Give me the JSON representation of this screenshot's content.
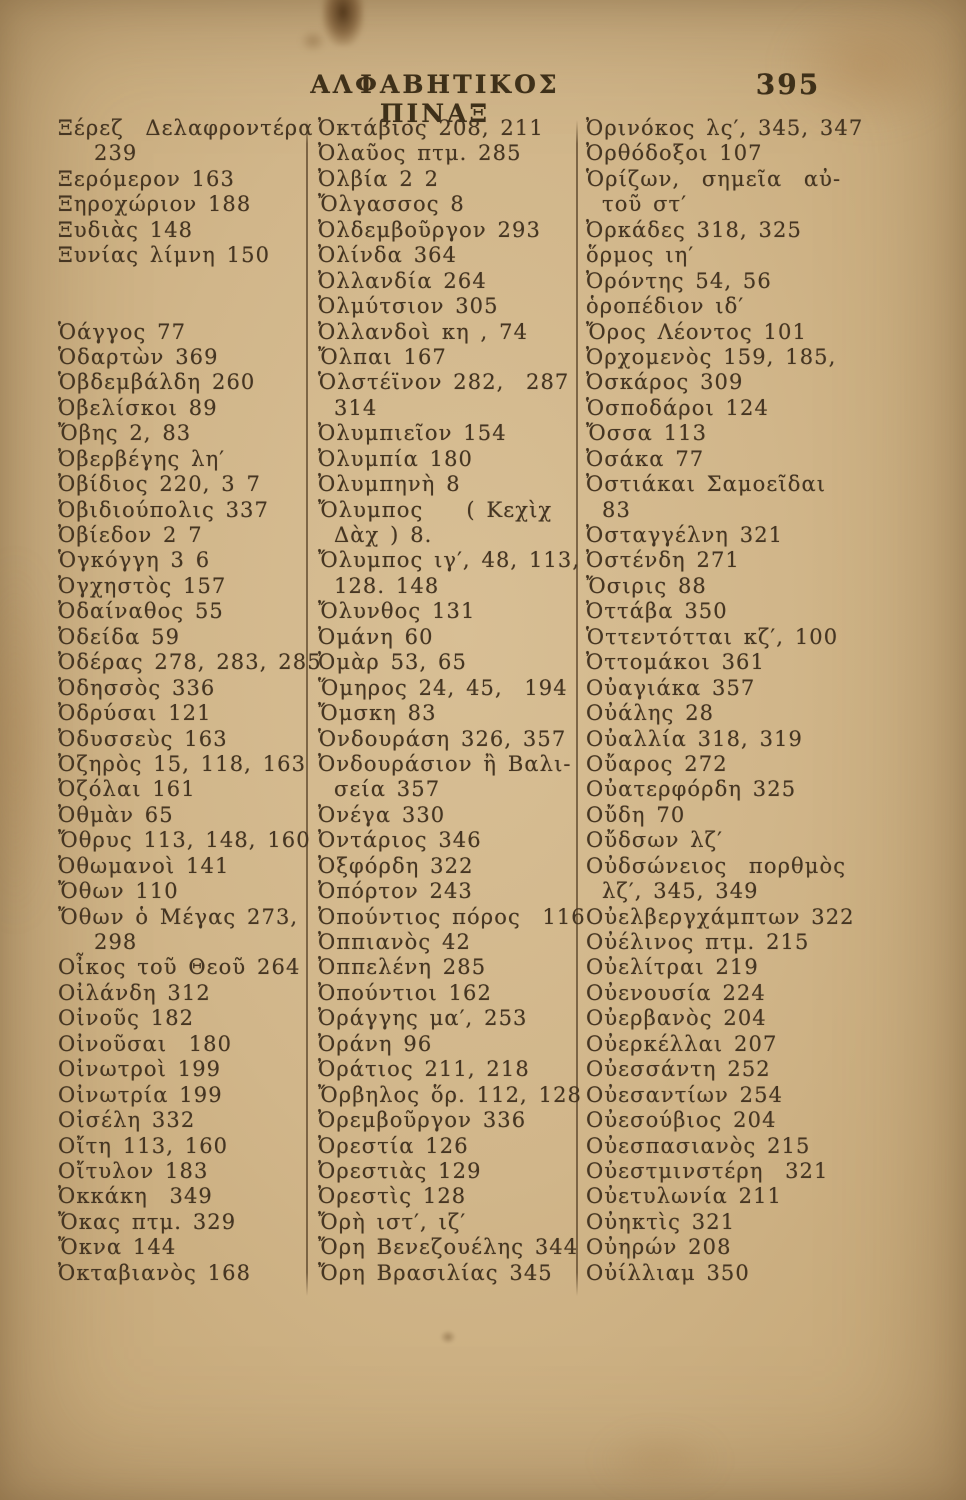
{
  "page": {
    "title": "ΑΛΦΑΒΗΤΙΚΟΣ ΠΙΝΑΞ",
    "page_number": "395",
    "paper_color": "#d1b68a",
    "ink_color": "#43341f"
  },
  "columns": [
    {
      "name": "column-1",
      "lines": [
        {
          "text": "Ξέρεζ  Δελαφροντέρα"
        },
        {
          "text": "239",
          "cont": true
        },
        {
          "text": "Ξερόμερον 163"
        },
        {
          "text": "Ξηροχώριον 188"
        },
        {
          "text": "Ξυδιὰς 148"
        },
        {
          "text": "Ξυνίας λίμνη 150"
        },
        {
          "text": "",
          "blank": true
        },
        {
          "text": "",
          "blank": true
        },
        {
          "text": "Ὁάγγος 77"
        },
        {
          "text": "Ὁδαρτὼν 369"
        },
        {
          "text": "Ὁβδεμβάλδη 260"
        },
        {
          "text": "Ὀβελίσκοι 89"
        },
        {
          "text": "Ὄβης 2, 83"
        },
        {
          "text": "Ὀβερβέγης λη′"
        },
        {
          "text": "Ὀβίδιος 220, 3 7"
        },
        {
          "text": "Ὀβιδιούπολις 337"
        },
        {
          "text": "Ὀβίεδον 2 7"
        },
        {
          "text": "Ὁγκόγγη 3 6"
        },
        {
          "text": "Ὀγχηστὸς 157"
        },
        {
          "text": "Ὀδαίναθος 55"
        },
        {
          "text": "Ὀδείδα 59"
        },
        {
          "text": "Ὀδέρας 278, 283, 285"
        },
        {
          "text": "Ὀδησσὸς 336"
        },
        {
          "text": "Ὀδρύσαι 121"
        },
        {
          "text": "Ὀδυσσεὺς 163"
        },
        {
          "text": "Ὀζηρὸς 15, 118, 163"
        },
        {
          "text": "Ὀζόλαι 161"
        },
        {
          "text": "Ὀθμὰν 65"
        },
        {
          "text": "Ὄθρυς 113, 148, 160"
        },
        {
          "text": "Ὀθωμανοὶ 141"
        },
        {
          "text": "Ὄθων 110"
        },
        {
          "text": "Ὄθων ὁ Μέγας 273,"
        },
        {
          "text": "298",
          "cont": true
        },
        {
          "text": "Οἶκος τοῦ Θεοῦ 264"
        },
        {
          "text": "Οἰλάνδη 312"
        },
        {
          "text": "Οἰνοῦς 182"
        },
        {
          "text": "Οἰνοῦσαι  180"
        },
        {
          "text": "Οἰνωτροὶ 199"
        },
        {
          "text": "Οἰνωτρία 199"
        },
        {
          "text": "Οἰσέλη 332"
        },
        {
          "text": "Οἴτη 113, 160"
        },
        {
          "text": "Οἴτυλον 183"
        },
        {
          "text": "Ὀκκάκη  349"
        },
        {
          "text": "Ὄκας πτμ. 329"
        },
        {
          "text": "Ὄκνα 144"
        },
        {
          "text": "Ὀκταβιανὸς 168"
        }
      ]
    },
    {
      "name": "column-2",
      "lines": [
        {
          "text": "Ὀκτάβιος 208, 211"
        },
        {
          "text": "Ὀλαῦος πτμ. 285"
        },
        {
          "text": "Ὀλβία 2 2"
        },
        {
          "text": "Ὄλγασσος 8"
        },
        {
          "text": "Ὀλδεμβοῦργον 293"
        },
        {
          "text": "Ὀλίνδα 364"
        },
        {
          "text": "Ὀλλανδία 264"
        },
        {
          "text": "Ὀλμύτσιον 305"
        },
        {
          "text": "Ὀλλανδοὶ κη , 74"
        },
        {
          "text": "Ὄλπαι 167"
        },
        {
          "text": "Ὁλστέϊνον 282,  287"
        },
        {
          "text": "314",
          "cont": true
        },
        {
          "text": "Ὀλυμπιεῖον 154"
        },
        {
          "text": "Ὀλυμπία 180"
        },
        {
          "text": "Ὀλυμπηνὴ 8"
        },
        {
          "text": "Ὄλυμπος    ( Κεχὶχ"
        },
        {
          "text": "Δὰχ ) 8.",
          "cont": true
        },
        {
          "text": "Ὄλυμπος ιγ′, 48, 113,"
        },
        {
          "text": "128. 148",
          "cont": true
        },
        {
          "text": "Ὄλυνθος 131"
        },
        {
          "text": "Ὀμάνη 60"
        },
        {
          "text": "Ὀμὰρ 53, 65"
        },
        {
          "text": "Ὅμηρος 24, 45,  194"
        },
        {
          "text": "Ὄμσκη 83"
        },
        {
          "text": "Ὁνδουράση 326, 357"
        },
        {
          "text": "Ὀνδουράσιον ἢ Βαλι-"
        },
        {
          "text": "σεία 357",
          "cont": true
        },
        {
          "text": "Ὀνέγα 330"
        },
        {
          "text": "Ὀντάριος 346"
        },
        {
          "text": "Ὀξφόρδη 322"
        },
        {
          "text": "Ὀπόρτον 243"
        },
        {
          "text": "Ὀπούντιος πόρος  116"
        },
        {
          "text": "Ὀππιανὸς 42"
        },
        {
          "text": "Ὀππελένη 285"
        },
        {
          "text": "Ὀπούντιοι 162"
        },
        {
          "text": "Ὀράγγης μα′, 253"
        },
        {
          "text": "Ὀράνη 96"
        },
        {
          "text": "Ὀράτιος 211, 218"
        },
        {
          "text": "Ὄρβηλος ὅρ. 112, 128"
        },
        {
          "text": "Ὀρεμβοῦργον 336"
        },
        {
          "text": "Ὀρεστία 126"
        },
        {
          "text": "Ὀρεστιὰς 129"
        },
        {
          "text": "Ὀρεστὶς 128"
        },
        {
          "text": "Ὄρὴ ιστ′, ιζ′"
        },
        {
          "text": "Ὄρη Βενεζουέλης 344"
        },
        {
          "text": "Ὄρη Βρασιλίας 345"
        }
      ]
    },
    {
      "name": "column-3",
      "lines": [
        {
          "text": "Ὀρινόκος λς′, 345, 347"
        },
        {
          "text": "Ὀρθόδοξοι 107"
        },
        {
          "text": "Ὁρίζων,  σημεῖα  αὐ-"
        },
        {
          "text": "τοῦ στ′",
          "cont": true
        },
        {
          "text": "Ὀρκάδες 318, 325"
        },
        {
          "text": "ὅρμος ιη′"
        },
        {
          "text": "Ὀρόντης 54, 56"
        },
        {
          "text": "ὁροπέδιον ιδ′"
        },
        {
          "text": "Ὄρος Λέοντος 101"
        },
        {
          "text": "Ὀρχομενὸς 159, 185,"
        },
        {
          "text": "Ὀσκάρος 309"
        },
        {
          "text": "Ὁσποδάροι 124"
        },
        {
          "text": "Ὄσσα 113"
        },
        {
          "text": "Ὀσάκα 77"
        },
        {
          "text": "Ὀστιάκαι Σαμοεῖδαι"
        },
        {
          "text": "83",
          "cont": true
        },
        {
          "text": "Ὀσταγγέλνη 321"
        },
        {
          "text": "Ὀστένδη 271"
        },
        {
          "text": "Ὄσιρις 88"
        },
        {
          "text": "Ὀττάβα 350"
        },
        {
          "text": "Ὁττεντότται κζ′, 100"
        },
        {
          "text": "Ὀττομάκοι 361"
        },
        {
          "text": "Οὐαγιάκα 357"
        },
        {
          "text": "Οὐάλης 28"
        },
        {
          "text": "Οὐαλλία 318, 319"
        },
        {
          "text": "Οὔαρος 272"
        },
        {
          "text": "Οὐατερφόρδη 325"
        },
        {
          "text": "Οὔδη 70"
        },
        {
          "text": "Οὔδσων λζ′"
        },
        {
          "text": "Οὐδσώνειος  πορθμὸς"
        },
        {
          "text": "λζ′, 345, 349",
          "cont": true
        },
        {
          "text": "Οὐελβεργχάμπτων 322"
        },
        {
          "text": "Οὐέλινος πτμ. 215"
        },
        {
          "text": "Οὐελίτραι 219"
        },
        {
          "text": "Οὐενουσία 224"
        },
        {
          "text": "Οὐερβανὸς 204"
        },
        {
          "text": "Οὐερκέλλαι 207"
        },
        {
          "text": "Οὐεσσάντη 252"
        },
        {
          "text": "Οὐεσαντίων 254"
        },
        {
          "text": "Οὐεσούβιος 204"
        },
        {
          "text": "Οὐεσπασιανὸς 215"
        },
        {
          "text": "Οὐεστμινστέρη  321"
        },
        {
          "text": "Οὐετυλωνία 211"
        },
        {
          "text": "Οὐηκτὶς 321"
        },
        {
          "text": "Οὐηρών 208"
        },
        {
          "text": "Οὐίλλιαμ 350"
        }
      ]
    }
  ]
}
